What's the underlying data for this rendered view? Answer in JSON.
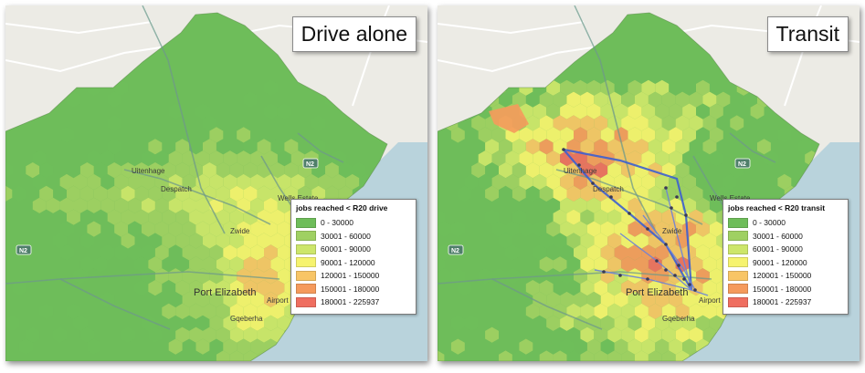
{
  "panels": [
    {
      "id": "left",
      "title": "Drive alone",
      "legend_title": "jobs reached < R20 drive",
      "mode": "drive",
      "show_routes": false
    },
    {
      "id": "right",
      "title": "Transit",
      "legend_title": "jobs reached < R20 transit",
      "mode": "transit",
      "show_routes": true
    }
  ],
  "legend_classes": [
    {
      "label": "0 - 30000",
      "color": "#6ebd5a"
    },
    {
      "label": "30001 - 60000",
      "color": "#9fd062"
    },
    {
      "label": "60001 - 90000",
      "color": "#cde66a"
    },
    {
      "label": "90001 - 120000",
      "color": "#f6f36e"
    },
    {
      "label": "120001 - 150000",
      "color": "#f8c566"
    },
    {
      "label": "150001 - 180000",
      "color": "#f59a5c"
    },
    {
      "label": "180001 - 225937",
      "color": "#ef6e60"
    }
  ],
  "places": {
    "uitenhage": "Uitenhage",
    "despatch": "Despatch",
    "wells_estate": "Wells Estate",
    "zwide": "Zwide",
    "port_elizabeth": "Port Elizabeth",
    "gqebera": "Gqeberha",
    "airport": "Airport",
    "road_n2": "N2"
  },
  "colors": {
    "sea": "#b9d3dc",
    "land": "#ecebe5"
  }
}
